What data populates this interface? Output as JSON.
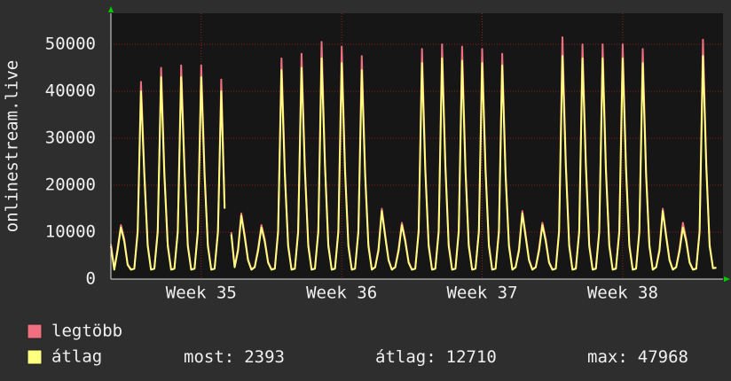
{
  "chart_data": {
    "type": "line",
    "y_label": "onlinestream.live",
    "x": [
      0,
      4,
      8,
      12,
      16,
      20,
      24,
      28,
      32,
      36,
      40,
      44,
      48,
      52,
      56,
      60,
      64,
      68,
      72,
      76,
      80,
      84,
      88,
      92,
      96,
      100,
      104,
      108,
      112,
      116,
      120,
      124,
      128,
      132,
      136,
      140,
      144,
      148,
      152,
      156,
      160,
      164,
      168,
      172,
      176,
      180,
      184,
      188,
      192,
      196,
      200,
      204,
      208,
      212,
      216,
      220,
      224,
      228,
      232,
      236,
      240,
      244,
      248,
      252,
      256,
      260,
      264,
      268,
      272,
      276,
      280,
      284,
      288,
      292,
      296,
      300,
      304,
      308,
      312,
      316,
      320,
      324,
      328,
      332,
      336,
      340,
      344,
      348,
      352,
      356,
      360,
      364,
      368,
      372,
      376,
      380,
      384,
      388,
      392,
      396,
      400,
      404,
      408,
      412,
      416,
      420,
      424,
      428,
      432,
      436,
      440,
      444,
      448,
      452,
      456,
      460,
      464,
      468,
      472,
      476,
      480,
      484,
      488,
      492,
      496,
      500,
      504,
      508,
      512,
      516,
      520,
      524,
      528,
      532,
      536,
      540,
      544,
      548,
      552,
      556,
      560,
      564,
      568,
      572,
      576,
      580,
      584,
      588,
      592,
      596,
      600,
      604,
      608,
      612,
      616,
      620,
      624,
      628,
      632,
      636,
      640,
      644,
      648,
      652,
      656,
      660,
      664,
      668,
      672,
      676,
      680,
      684,
      688,
      692,
      696,
      700,
      704,
      708,
      712,
      716,
      720,
      724
    ],
    "series": [
      {
        "name": "legtöbb",
        "color": "#f07080",
        "values": [
          7500,
          2100,
          6500,
          11500,
          8500,
          3200,
          2100,
          2300,
          10500,
          42000,
          23000,
          7500,
          2100,
          2300,
          10500,
          45000,
          23000,
          7500,
          2100,
          2300,
          10500,
          45500,
          24000,
          7500,
          2100,
          2300,
          10500,
          45500,
          23000,
          7500,
          2100,
          2300,
          10500,
          42500,
          15500,
          null,
          10000,
          2600,
          6500,
          14000,
          9500,
          4200,
          2100,
          2600,
          6500,
          11500,
          8500,
          3700,
          2100,
          2300,
          10500,
          47000,
          23000,
          7500,
          2100,
          2300,
          10500,
          48000,
          24000,
          7500,
          2100,
          2300,
          10500,
          50500,
          25000,
          7500,
          2100,
          2300,
          10500,
          49500,
          24000,
          7500,
          2100,
          2300,
          10500,
          47500,
          23000,
          7500,
          2100,
          2600,
          6500,
          15000,
          9500,
          4200,
          2100,
          2600,
          6500,
          12000,
          8500,
          3700,
          2100,
          2300,
          10500,
          49000,
          24000,
          7500,
          2100,
          2300,
          10500,
          50000,
          25000,
          7500,
          2100,
          2300,
          10500,
          49500,
          24000,
          7500,
          2100,
          2300,
          10500,
          49000,
          24000,
          7500,
          2100,
          2300,
          10500,
          48000,
          23000,
          7500,
          2100,
          2600,
          6500,
          14500,
          9500,
          4200,
          2100,
          2600,
          6500,
          12000,
          8500,
          3700,
          2100,
          2300,
          10500,
          51500,
          25000,
          7500,
          2100,
          2300,
          10500,
          50000,
          25000,
          7500,
          2100,
          2300,
          10500,
          50000,
          24000,
          7500,
          2100,
          2300,
          10500,
          50000,
          24000,
          7500,
          2100,
          2300,
          10500,
          49000,
          23000,
          7500,
          2100,
          2600,
          6500,
          15000,
          9500,
          4200,
          2100,
          2600,
          6500,
          12000,
          8500,
          3700,
          2100,
          2300,
          10500,
          51000,
          25000,
          7500,
          2400,
          2450
        ]
      },
      {
        "name": "átlag",
        "color": "#ffff80",
        "values": [
          7000,
          2000,
          6000,
          11000,
          8000,
          3000,
          2000,
          2200,
          10000,
          40000,
          22000,
          7000,
          2000,
          2200,
          10000,
          43000,
          22000,
          7000,
          2000,
          2200,
          10000,
          43000,
          23000,
          7000,
          2000,
          2200,
          10000,
          43000,
          22000,
          7000,
          2000,
          2200,
          10000,
          40000,
          15000,
          null,
          9500,
          2500,
          6000,
          13500,
          9000,
          4000,
          2000,
          2500,
          6000,
          11000,
          8000,
          3500,
          2000,
          2200,
          10000,
          44500,
          22000,
          7000,
          2000,
          2200,
          10000,
          45000,
          23000,
          7000,
          2000,
          2200,
          10000,
          47000,
          24000,
          7000,
          2000,
          2200,
          10000,
          46000,
          23000,
          7000,
          2000,
          2200,
          10000,
          44500,
          22000,
          7000,
          2000,
          2500,
          6000,
          14500,
          9000,
          4000,
          2000,
          2500,
          6000,
          11500,
          8000,
          3500,
          2000,
          2200,
          10000,
          46000,
          23000,
          7000,
          2000,
          2200,
          10000,
          47000,
          24000,
          7000,
          2000,
          2200,
          10000,
          46500,
          23000,
          7000,
          2000,
          2200,
          10000,
          46000,
          23000,
          7000,
          2000,
          2200,
          10000,
          45500,
          22000,
          7000,
          2000,
          2500,
          6000,
          14000,
          9000,
          4000,
          2000,
          2500,
          6000,
          11500,
          8000,
          3500,
          2000,
          2200,
          10000,
          47500,
          24000,
          7000,
          2000,
          2200,
          10000,
          47000,
          24000,
          7000,
          2000,
          2200,
          10000,
          47000,
          23000,
          7000,
          2000,
          2200,
          10000,
          47000,
          23000,
          7000,
          2000,
          2200,
          10000,
          46000,
          22000,
          7000,
          2000,
          2500,
          6000,
          14500,
          9000,
          4000,
          2000,
          2500,
          6000,
          11000,
          8000,
          3500,
          2000,
          2200,
          10000,
          47500,
          24000,
          7000,
          2300,
          2393
        ]
      }
    ],
    "xlim": [
      0,
      732
    ],
    "xticks": [
      {
        "value": 108,
        "label": "Week 35"
      },
      {
        "value": 276,
        "label": "Week 36"
      },
      {
        "value": 444,
        "label": "Week 37"
      },
      {
        "value": 612,
        "label": "Week 38"
      }
    ],
    "ylim": [
      0,
      56600
    ],
    "yticks": [
      0,
      10000,
      20000,
      30000,
      40000,
      50000
    ],
    "grid": true,
    "stats": [
      {
        "label": "most:",
        "value": 2393
      },
      {
        "label": "átlag:",
        "value": 12710
      },
      {
        "label": "max:",
        "value": 47968
      }
    ]
  }
}
